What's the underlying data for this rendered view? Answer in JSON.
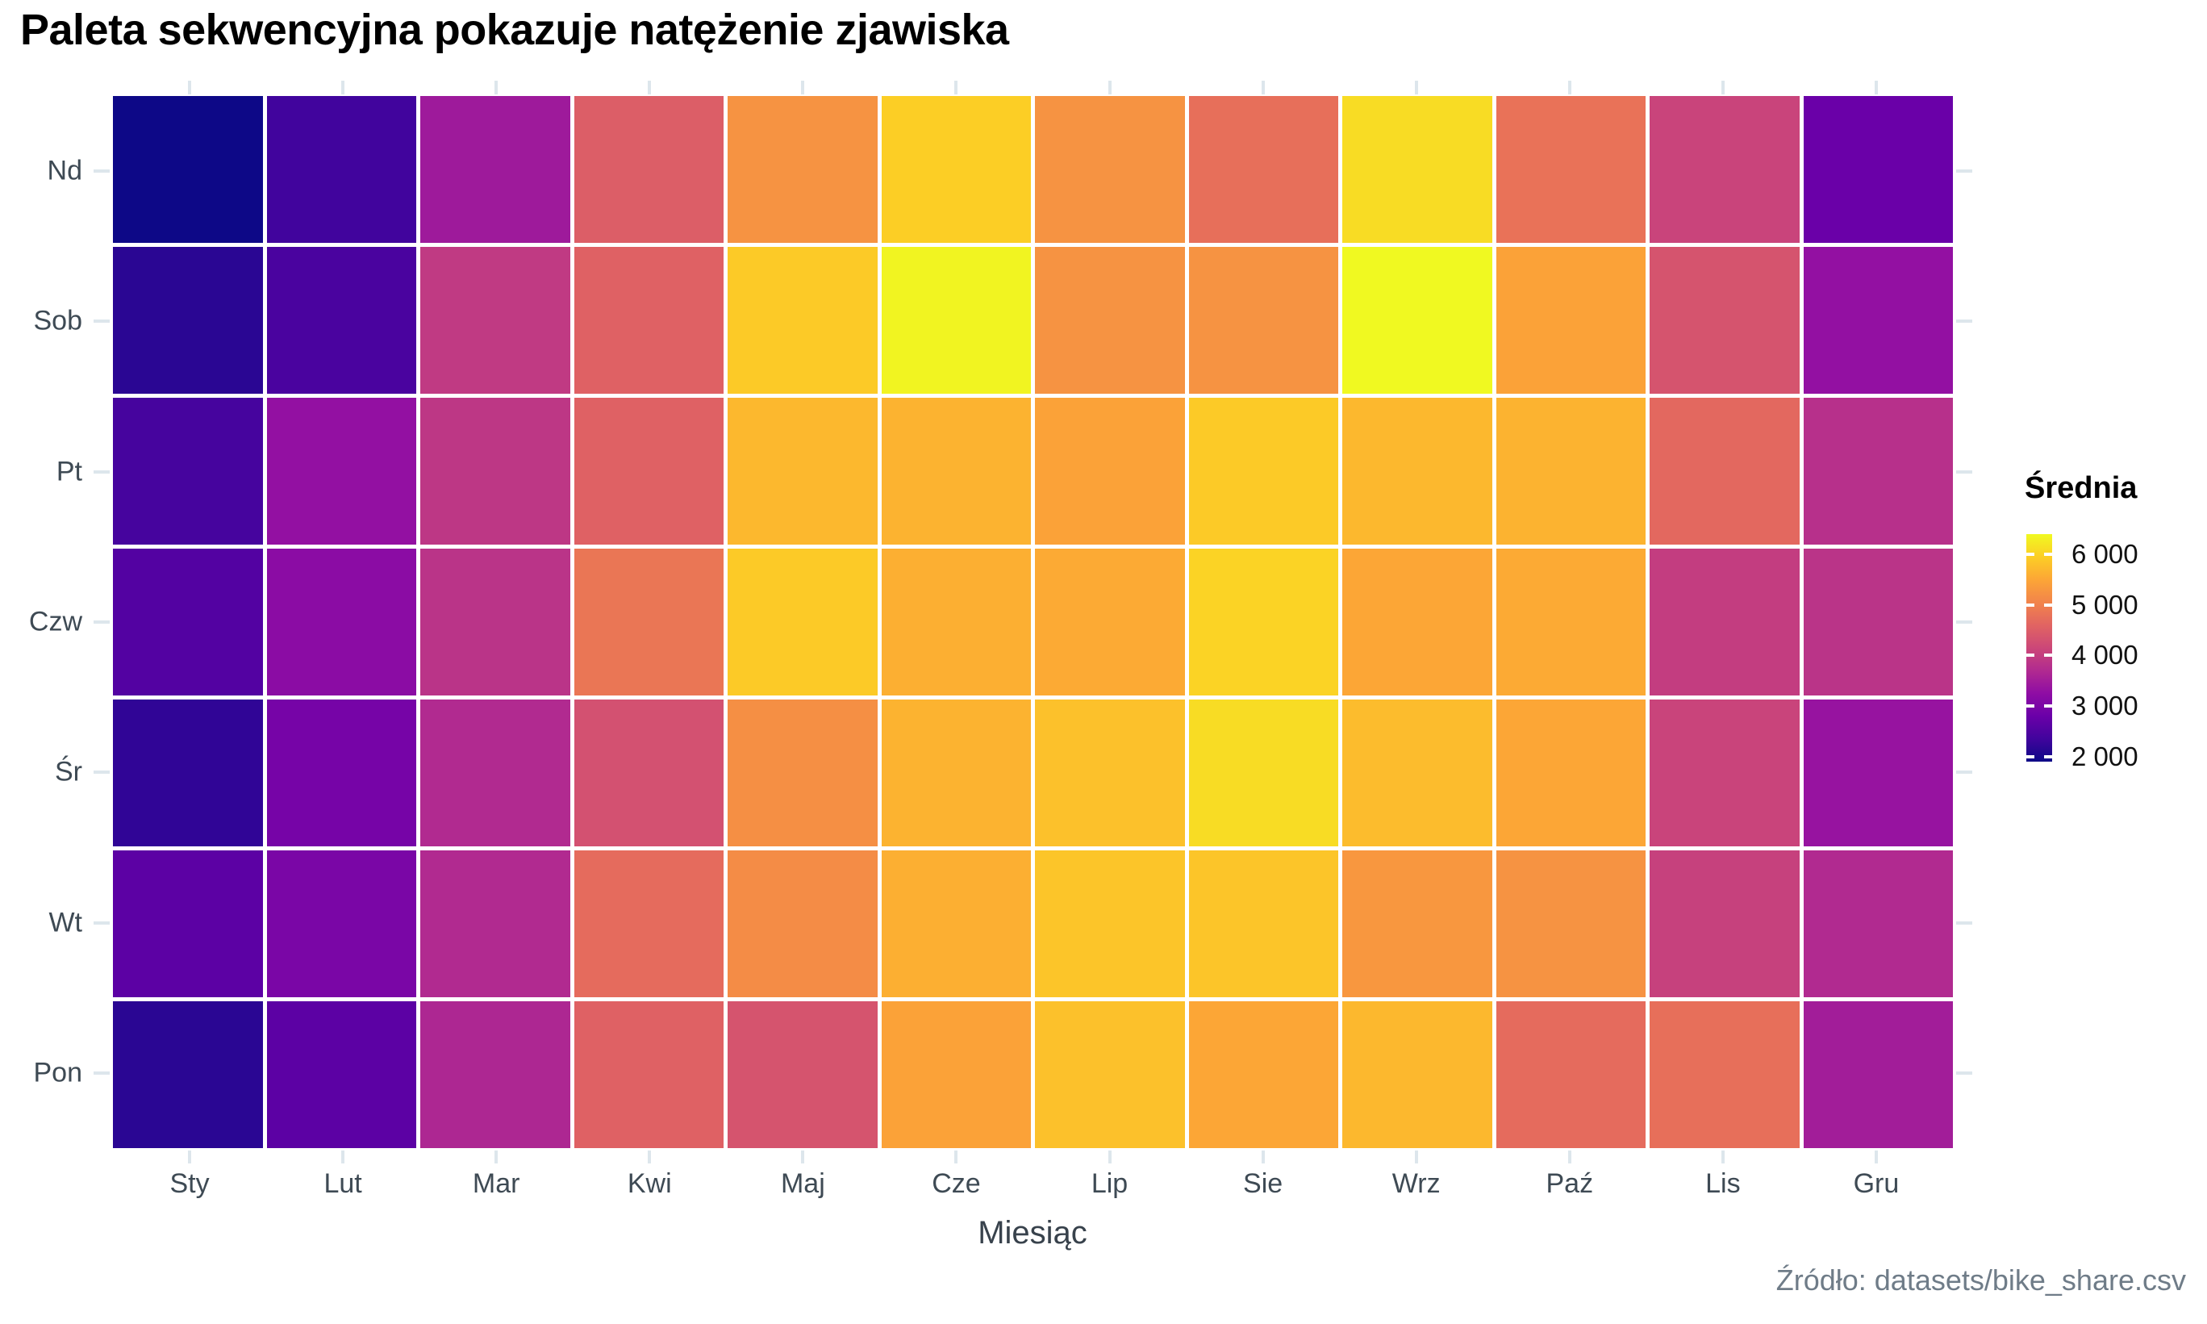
{
  "title": "Paleta sekwencyjna pokazuje natężenie zjawiska",
  "caption": "Źródło: datasets/bike_share.csv",
  "axes": {
    "x_label": "Miesiąc",
    "x_tick_labels": [
      "Sty",
      "Lut",
      "Mar",
      "Kwi",
      "Maj",
      "Cze",
      "Lip",
      "Sie",
      "Wrz",
      "Paź",
      "Lis",
      "Gru"
    ],
    "y_tick_labels": [
      "Nd",
      "Sob",
      "Pt",
      "Czw",
      "Śr",
      "Wt",
      "Pon"
    ]
  },
  "legend": {
    "title": "Średnia",
    "tick_labels": [
      "6 000",
      "5 000",
      "4 000",
      "3 000",
      "2 000"
    ],
    "tick_values": [
      6000,
      5000,
      4000,
      3000,
      2000
    ]
  },
  "colors": {
    "palette_name": "plasma",
    "plasma_stops": [
      "#0d0887",
      "#41049d",
      "#6a00a8",
      "#8f0da4",
      "#b12a90",
      "#cc4778",
      "#e16462",
      "#f2844b",
      "#fca636",
      "#fcce25",
      "#f0f921"
    ],
    "title_text": "#000000",
    "axis_text": "#3e4a54",
    "axis_title_text": "#38424c",
    "caption_text": "#6f7c88",
    "grid_stub": "#dde6ec",
    "cell_gap": "#ffffff"
  },
  "chart_data": {
    "type": "heatmap",
    "title": "Paleta sekwencyjna pokazuje natężenie zjawiska",
    "xlabel": "Miesiąc",
    "ylabel": "",
    "x": [
      "Sty",
      "Lut",
      "Mar",
      "Kwi",
      "Maj",
      "Cze",
      "Lip",
      "Sie",
      "Wrz",
      "Paź",
      "Lis",
      "Gru"
    ],
    "y": [
      "Nd",
      "Sob",
      "Pt",
      "Czw",
      "Śr",
      "Wt",
      "Pon"
    ],
    "series": [
      {
        "name": "Nd",
        "values": [
          1900,
          2350,
          3450,
          4500,
          5250,
          5950,
          5250,
          4750,
          6100,
          4800,
          4100,
          2800
        ]
      },
      {
        "name": "Sob",
        "values": [
          2150,
          2450,
          3950,
          4550,
          5900,
          6350,
          5250,
          5250,
          6400,
          5450,
          4350,
          3300
        ]
      },
      {
        "name": "Pt",
        "values": [
          2400,
          3300,
          3900,
          4550,
          5700,
          5650,
          5450,
          5900,
          5700,
          5650,
          4650,
          3800
        ]
      },
      {
        "name": "Czw",
        "values": [
          2550,
          3200,
          3850,
          4850,
          5900,
          5600,
          5550,
          6000,
          5500,
          5550,
          4000,
          3850
        ]
      },
      {
        "name": "Śr",
        "values": [
          2200,
          2950,
          3700,
          4300,
          5200,
          5650,
          5800,
          6100,
          5750,
          5500,
          4100,
          3350
        ]
      },
      {
        "name": "Wt",
        "values": [
          2650,
          3000,
          3700,
          4700,
          5150,
          5600,
          5850,
          5850,
          5300,
          5250,
          4050,
          3700
        ]
      },
      {
        "name": "Pon",
        "values": [
          2150,
          2650,
          3650,
          4550,
          4350,
          5450,
          5800,
          5500,
          5700,
          4700,
          4750,
          3500
        ]
      }
    ],
    "color_scale": {
      "palette": "plasma",
      "domain": [
        1900,
        6400
      ],
      "legend_title": "Średnia"
    },
    "legend_position": "right",
    "grid": "minimal-stubs"
  }
}
